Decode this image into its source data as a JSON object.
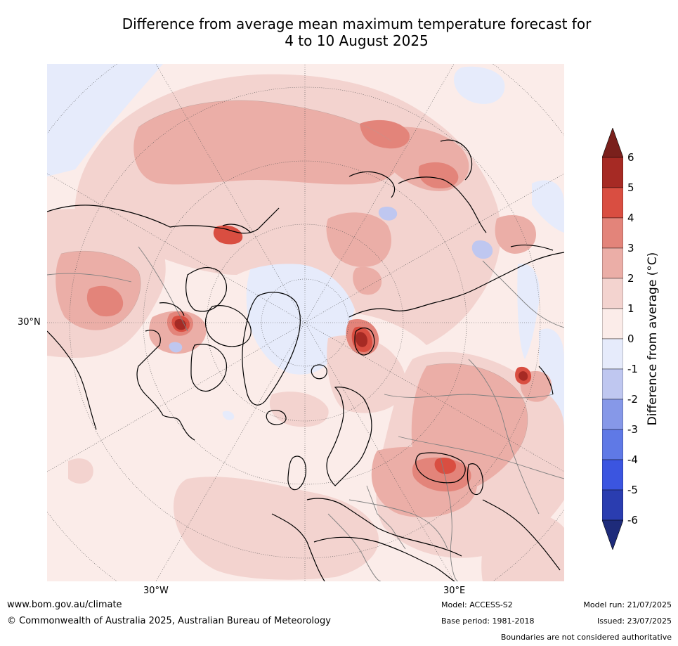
{
  "title": {
    "line1": "Difference from average mean maximum temperature forecast for",
    "line2": "4 to 10 August 2025"
  },
  "map": {
    "projection": "north-polar-stereographic",
    "lat_label": "30°N",
    "lon_labels": [
      "30°W",
      "30°E"
    ],
    "colors": {
      "ocean_background": "#fbece9",
      "anom_0_1": "#fbece9",
      "anom_1_2": "#f3d3cf",
      "anom_2_3": "#ebaea7",
      "anom_3_4": "#e3847a",
      "anom_4_5": "#d94e41",
      "anom_5_6": "#a62a24",
      "anom_neg_0_1": "#e6ebfb",
      "anom_neg_1_2": "#bfc7f0",
      "coastline": "#000000",
      "borders": "#808080",
      "graticule": "#555555"
    }
  },
  "colorbar": {
    "label": "Difference from average (°C)",
    "ticks": [
      "6",
      "5",
      "4",
      "3",
      "2",
      "1",
      "0",
      "-1",
      "-2",
      "-3",
      "-4",
      "-5",
      "-6"
    ],
    "extend": "both",
    "over_color": "#7a201c",
    "under_color": "#1e2b7a",
    "bins": [
      {
        "range": "5 to 6",
        "color": "#a62a24"
      },
      {
        "range": "4 to 5",
        "color": "#d94e41"
      },
      {
        "range": "3 to 4",
        "color": "#e3847a"
      },
      {
        "range": "2 to 3",
        "color": "#ebaea7"
      },
      {
        "range": "1 to 2",
        "color": "#f3d3cf"
      },
      {
        "range": "0 to 1",
        "color": "#fbece9"
      },
      {
        "range": "-1 to 0",
        "color": "#e6ebfb"
      },
      {
        "range": "-2 to -1",
        "color": "#bfc7f0"
      },
      {
        "range": "-3 to -2",
        "color": "#8698e8"
      },
      {
        "range": "-4 to -3",
        "color": "#5f79e6"
      },
      {
        "range": "-5 to -4",
        "color": "#3b55e0"
      },
      {
        "range": "-6 to -5",
        "color": "#2a3db0"
      }
    ]
  },
  "footer": {
    "url": "www.bom.gov.au/climate",
    "copyright": "© Commonwealth of Australia 2025, Australian Bureau of Meteorology",
    "model": "Model: ACCESS-S2",
    "base_period": "Base period: 1981-2018",
    "model_run": "Model run: 21/07/2025",
    "issued": "Issued: 23/07/2025",
    "disclaimer": "Boundaries are not considered authoritative"
  }
}
